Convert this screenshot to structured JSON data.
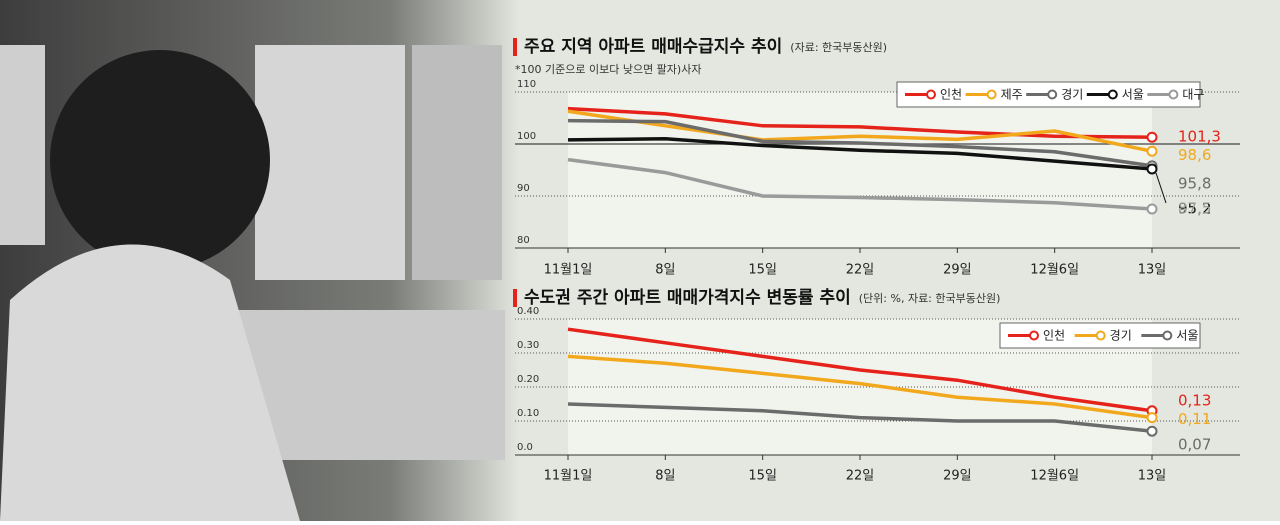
{
  "chart_data": [
    {
      "type": "line",
      "title": "주요 지역 아파트 매매수급지수 추이",
      "source": "(자료: 한국부동산원)",
      "subtitle": "*100 기준으로 이보다 낮으면 팔자)사자",
      "categories": [
        "11월1일",
        "8일",
        "15일",
        "22일",
        "29일",
        "12월6일",
        "13일"
      ],
      "ylim": [
        80,
        110
      ],
      "yticks": [
        80,
        90,
        100,
        110
      ],
      "grid": true,
      "reference": 100,
      "series": [
        {
          "name": "인천",
          "color": "#e5231b",
          "values": [
            106.8,
            105.8,
            103.5,
            103.3,
            102.3,
            101.5,
            101.3
          ],
          "value_labels": [
            null,
            null,
            null,
            null,
            null,
            null,
            "101,3"
          ]
        },
        {
          "name": "제주",
          "color": "#f2a81d",
          "values": [
            106.3,
            103.5,
            100.8,
            101.5,
            100.9,
            102.5,
            98.6
          ],
          "value_labels": [
            null,
            null,
            null,
            null,
            null,
            null,
            "98,6"
          ]
        },
        {
          "name": "경기",
          "color": "#6b6b6b",
          "values": [
            104.5,
            104.3,
            100.5,
            100.2,
            99.5,
            98.5,
            95.8
          ],
          "value_labels": [
            null,
            null,
            null,
            null,
            null,
            null,
            "95,8"
          ]
        },
        {
          "name": "서울",
          "color": "#111111",
          "values": [
            100.8,
            101,
            99.7,
            98.8,
            98.2,
            96.7,
            95.2
          ],
          "value_labels": [
            null,
            null,
            null,
            null,
            null,
            null,
            "95,2"
          ]
        },
        {
          "name": "대구",
          "color": "#9a9a9a",
          "values": [
            97,
            94.5,
            90,
            89.7,
            89.3,
            88.7,
            87.5
          ],
          "value_labels": [
            null,
            null,
            null,
            null,
            null,
            null,
            "87,5"
          ]
        }
      ]
    },
    {
      "type": "line",
      "title": "수도권 주간 아파트 매매가격지수 변동률 추이",
      "source": "(단위: %, 자료: 한국부동산원)",
      "categories": [
        "11월1일",
        "8일",
        "15일",
        "22일",
        "29일",
        "12월6일",
        "13일"
      ],
      "ylim": [
        0,
        0.4
      ],
      "yticks": [
        {
          "value": 0,
          "label": "0.0"
        },
        {
          "value": 0.1,
          "label": "0.10"
        },
        {
          "value": 0.2,
          "label": "0.20"
        },
        {
          "value": 0.3,
          "label": "0.30"
        },
        {
          "value": 0.4,
          "label": "0.40"
        }
      ],
      "grid": true,
      "series": [
        {
          "name": "인천",
          "color": "#e5231b",
          "values": [
            0.37,
            0.33,
            0.29,
            0.25,
            0.22,
            0.17,
            0.13
          ],
          "value_labels": [
            null,
            null,
            null,
            null,
            null,
            null,
            "0,13"
          ]
        },
        {
          "name": "경기",
          "color": "#f2a81d",
          "values": [
            0.29,
            0.27,
            0.24,
            0.21,
            0.17,
            0.15,
            0.11
          ],
          "value_labels": [
            null,
            null,
            null,
            null,
            null,
            null,
            "0,11"
          ]
        },
        {
          "name": "서울",
          "color": "#6b6b6b",
          "values": [
            0.15,
            0.14,
            0.13,
            0.11,
            0.1,
            0.1,
            0.07
          ],
          "value_labels": [
            null,
            null,
            null,
            null,
            null,
            null,
            "0,07"
          ]
        }
      ]
    }
  ]
}
